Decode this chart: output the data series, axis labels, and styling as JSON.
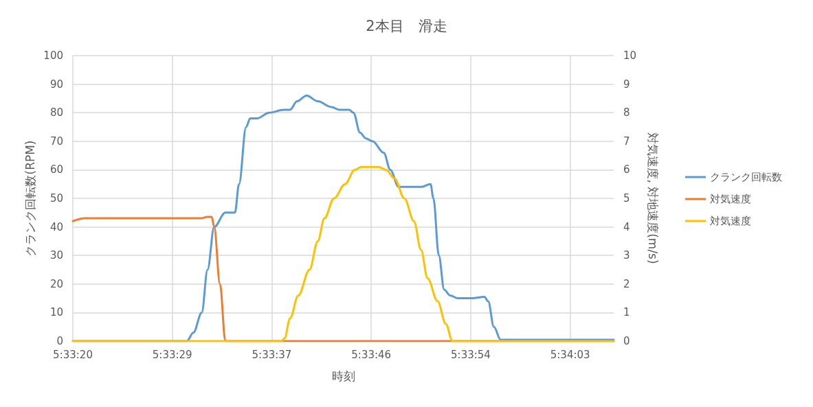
{
  "chart_data": {
    "type": "line",
    "title": "2本目　滑走",
    "xlabel": "時刻",
    "ylabel": "クランク回転数(RPM)",
    "y2label": "対気速度, 対地速度(m/s)",
    "xlim": [
      5.55553,
      5.56858
    ],
    "xticks": [
      {
        "value": 5.55553,
        "label": "5:33:20"
      },
      {
        "value": 5.55793,
        "label": "5:33:29"
      },
      {
        "value": 5.56033,
        "label": "5:33:37"
      },
      {
        "value": 5.56273,
        "label": "5:33:46"
      },
      {
        "value": 5.56513,
        "label": "5:33:54"
      },
      {
        "value": 5.56753,
        "label": "5:34:03"
      }
    ],
    "ylim": [
      0,
      100
    ],
    "yticks": [
      0,
      10,
      20,
      30,
      40,
      50,
      60,
      70,
      80,
      90,
      100
    ],
    "y2lim": [
      0,
      10
    ],
    "y2ticks": [
      0,
      1,
      2,
      3,
      4,
      5,
      6,
      7,
      8,
      9,
      10
    ],
    "grid": true,
    "legend": "right",
    "marker": "none",
    "line_style": "solid",
    "series": [
      {
        "name": "クランク回転数",
        "color": "#5b9bd5",
        "x": [
          5.55553,
          5.55828,
          5.55844,
          5.55864,
          5.55878,
          5.55894,
          5.55921,
          5.55944,
          5.55954,
          5.55971,
          5.55981,
          5.55997,
          5.56027,
          5.56061,
          5.56077,
          5.56094,
          5.56117,
          5.56144,
          5.56177,
          5.56197,
          5.5622,
          5.5623,
          5.56246,
          5.5626,
          5.56276,
          5.56303,
          5.56319,
          5.56339,
          5.56359,
          5.56393,
          5.56416,
          5.56423,
          5.56436,
          5.56449,
          5.56463,
          5.56482,
          5.56516,
          5.56546,
          5.56555,
          5.56569,
          5.56585,
          5.56642,
          5.56858
        ],
        "values": [
          0,
          0,
          3,
          10,
          25,
          40,
          45,
          45,
          55,
          75,
          78,
          78,
          80,
          81,
          81,
          84,
          86,
          84,
          82,
          81,
          81,
          80,
          73,
          71,
          70,
          66,
          60,
          54,
          54,
          54,
          55,
          50,
          30,
          18,
          16,
          15,
          15,
          15.5,
          14,
          5,
          0.5,
          0.5,
          0.5
        ]
      },
      {
        "name": "対気速度",
        "color": "#ed7d31",
        "axis": "y2",
        "x": [
          5.55553,
          5.55582,
          5.55595,
          5.55861,
          5.55878,
          5.55888,
          5.55894,
          5.55908,
          5.55921,
          5.56858
        ],
        "values": [
          4.2,
          4.3,
          4.3,
          4.3,
          4.35,
          4.35,
          4.0,
          2.0,
          0,
          0
        ]
      },
      {
        "name": "対気速度",
        "color": "#ffc000",
        "axis": "y2",
        "x": [
          5.55553,
          5.56037,
          5.56057,
          5.56064,
          5.56077,
          5.56097,
          5.56124,
          5.56144,
          5.5616,
          5.56183,
          5.5621,
          5.56233,
          5.5625,
          5.5629,
          5.56309,
          5.56329,
          5.56353,
          5.56376,
          5.56393,
          5.56409,
          5.56433,
          5.56453,
          5.56469,
          5.56858
        ],
        "values": [
          0,
          0,
          0,
          0.1,
          0.8,
          1.6,
          2.5,
          3.5,
          4.3,
          5.0,
          5.5,
          6.0,
          6.1,
          6.1,
          6.0,
          5.7,
          5.0,
          4.2,
          3.2,
          2.2,
          1.4,
          0.6,
          0,
          0
        ]
      }
    ]
  }
}
